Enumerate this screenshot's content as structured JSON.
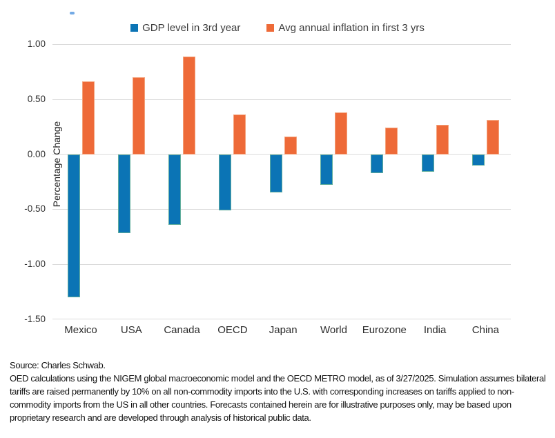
{
  "chart_data": {
    "type": "bar",
    "title": "",
    "xlabel": "",
    "ylabel": "Percentage Change",
    "categories": [
      "Mexico",
      "USA",
      "Canada",
      "OECD",
      "Japan",
      "World",
      "Eurozone",
      "India",
      "China"
    ],
    "series": [
      {
        "name": "GDP level in 3rd year",
        "color": "#0b74b5",
        "values": [
          -1.3,
          -0.72,
          -0.64,
          -0.51,
          -0.35,
          -0.28,
          -0.17,
          -0.16,
          -0.1
        ]
      },
      {
        "name": "Avg annual inflation in first 3 yrs",
        "color": "#ee6a38",
        "values": [
          0.66,
          0.7,
          0.89,
          0.36,
          0.16,
          0.38,
          0.24,
          0.27,
          0.31
        ]
      }
    ],
    "ylim": [
      -1.5,
      1.0
    ],
    "y_ticks": [
      1.0,
      0.5,
      0.0,
      -0.5,
      -1.0,
      -1.5
    ],
    "grid": "horizontal",
    "legend_position": "top",
    "gridline_color": "#dadada"
  },
  "footer": {
    "source": "Source: Charles Schwab.",
    "disclosure": "OED calculations using the NIGEM global macroeconomic model and the OECD METRO model, as of 3/27/2025. Simulation assumes bilateral tariffs are raised permanently by 10% on all non-commodity imports into the U.S. with corresponding increases on tariffs applied to non-commodity imports from the US in all other countries. Forecasts contained herein are for illustrative purposes only, may be based upon proprietary research and are developed through analysis of historical public data."
  }
}
